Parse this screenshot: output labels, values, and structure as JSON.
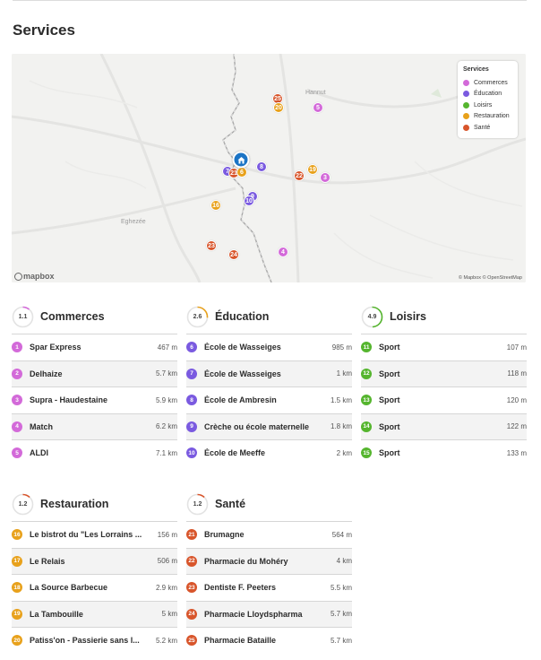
{
  "page": {
    "title": "Services"
  },
  "map": {
    "places": [
      "Hannut",
      "Eghezée"
    ],
    "attribution": "© Mapbox © OpenStreetMap",
    "logo": "mapbox",
    "legend": {
      "title": "Services",
      "items": [
        {
          "label": "Commerces",
          "color": "#d36ad9"
        },
        {
          "label": "Éducation",
          "color": "#7a5ae0"
        },
        {
          "label": "Loisirs",
          "color": "#55b52e"
        },
        {
          "label": "Restauration",
          "color": "#e8a11b"
        },
        {
          "label": "Santé",
          "color": "#d8552b"
        }
      ]
    },
    "markers": [
      "25",
      "20",
      "5",
      "7",
      "21",
      "6",
      "8",
      "19",
      "22",
      "3",
      "9",
      "10",
      "16",
      "23",
      "24",
      "4"
    ]
  },
  "categories": [
    {
      "name": "Commerces",
      "score": "1.1",
      "score_fraction": 0.11,
      "color": "#d36ad9",
      "ring": "#d36ad9",
      "items": [
        {
          "n": "1",
          "name": "Spar Express",
          "dist": "467 m"
        },
        {
          "n": "2",
          "name": "Delhaize",
          "dist": "5.7 km"
        },
        {
          "n": "3",
          "name": "Supra - Haudestaine",
          "dist": "5.9 km"
        },
        {
          "n": "4",
          "name": "Match",
          "dist": "6.2 km"
        },
        {
          "n": "5",
          "name": "ALDI",
          "dist": "7.1 km"
        }
      ]
    },
    {
      "name": "Éducation",
      "score": "2.6",
      "score_fraction": 0.26,
      "color": "#7a5ae0",
      "ring": "#e8a11b",
      "items": [
        {
          "n": "6",
          "name": "École de Wasseiges",
          "dist": "985 m"
        },
        {
          "n": "7",
          "name": "École de Wasseiges",
          "dist": "1 km"
        },
        {
          "n": "8",
          "name": "École de Ambresin",
          "dist": "1.5 km"
        },
        {
          "n": "9",
          "name": "Crèche ou école maternelle",
          "dist": "1.8 km"
        },
        {
          "n": "10",
          "name": "École de Meeffe",
          "dist": "2 km"
        }
      ]
    },
    {
      "name": "Loisirs",
      "score": "4.9",
      "score_fraction": 0.49,
      "color": "#55b52e",
      "ring": "#55b52e",
      "items": [
        {
          "n": "11",
          "name": "Sport",
          "dist": "107 m"
        },
        {
          "n": "12",
          "name": "Sport",
          "dist": "118 m"
        },
        {
          "n": "13",
          "name": "Sport",
          "dist": "120 m"
        },
        {
          "n": "14",
          "name": "Sport",
          "dist": "122 m"
        },
        {
          "n": "15",
          "name": "Sport",
          "dist": "133 m"
        }
      ]
    },
    {
      "name": "Restauration",
      "score": "1.2",
      "score_fraction": 0.12,
      "color": "#e8a11b",
      "ring": "#d8552b",
      "items": [
        {
          "n": "16",
          "name": "Le bistrot du \"Les Lorrains ...",
          "dist": "156 m"
        },
        {
          "n": "17",
          "name": "Le Relais",
          "dist": "506 m"
        },
        {
          "n": "18",
          "name": "La Source Barbecue",
          "dist": "2.9 km"
        },
        {
          "n": "19",
          "name": "La Tambouille",
          "dist": "5 km"
        },
        {
          "n": "20",
          "name": "Patiss'on - Passierie sans l...",
          "dist": "5.2 km"
        }
      ]
    },
    {
      "name": "Santé",
      "score": "1.2",
      "score_fraction": 0.12,
      "color": "#d8552b",
      "ring": "#d8552b",
      "items": [
        {
          "n": "21",
          "name": "Brumagne",
          "dist": "564 m"
        },
        {
          "n": "22",
          "name": "Pharmacie du Mohéry",
          "dist": "4 km"
        },
        {
          "n": "23",
          "name": "Dentiste F. Peeters",
          "dist": "5.5 km"
        },
        {
          "n": "24",
          "name": "Pharmacie Lloydspharma",
          "dist": "5.7 km"
        },
        {
          "n": "25",
          "name": "Pharmacie Bataille",
          "dist": "5.7 km"
        }
      ]
    }
  ]
}
